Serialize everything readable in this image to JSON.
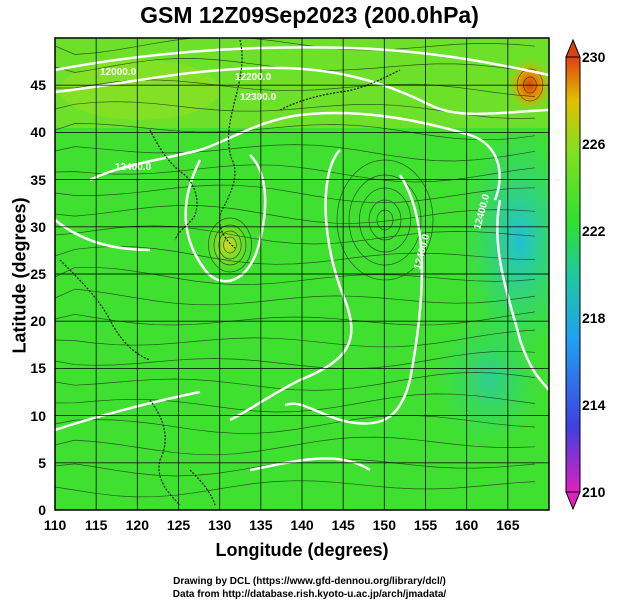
{
  "chart_data": {
    "type": "heatmap",
    "title": "GSM 12Z09Sep2023 (200.0hPa)",
    "xlabel": "Longitude (degrees)",
    "ylabel": "Latitude  (degrees)",
    "xlim": [
      110,
      170
    ],
    "ylim": [
      0,
      50
    ],
    "xticks": [
      "110",
      "115",
      "120",
      "125",
      "130",
      "135",
      "140",
      "145",
      "150",
      "155",
      "160",
      "165"
    ],
    "yticks": [
      "0",
      "5",
      "10",
      "15",
      "20",
      "25",
      "30",
      "35",
      "40",
      "45"
    ],
    "colorbar": {
      "ticks": [
        "210",
        "214",
        "218",
        "222",
        "226",
        "230"
      ],
      "range": [
        210,
        230
      ],
      "colors": [
        "#e020c0",
        "#4040e0",
        "#20a0f0",
        "#20c8a0",
        "#30e030",
        "#80e020",
        "#e0c000",
        "#e04010"
      ]
    },
    "contour_labels": [
      "12000.0",
      "12200.0",
      "12300.0",
      "12400.0"
    ],
    "grid": true
  },
  "credits": {
    "line1": "Drawing by DCL (https://www.gfd-dennou.org/library/dcl/)",
    "line2": "Data from http://database.rish.kyoto-u.ac.jp/arch/jmadata/"
  }
}
